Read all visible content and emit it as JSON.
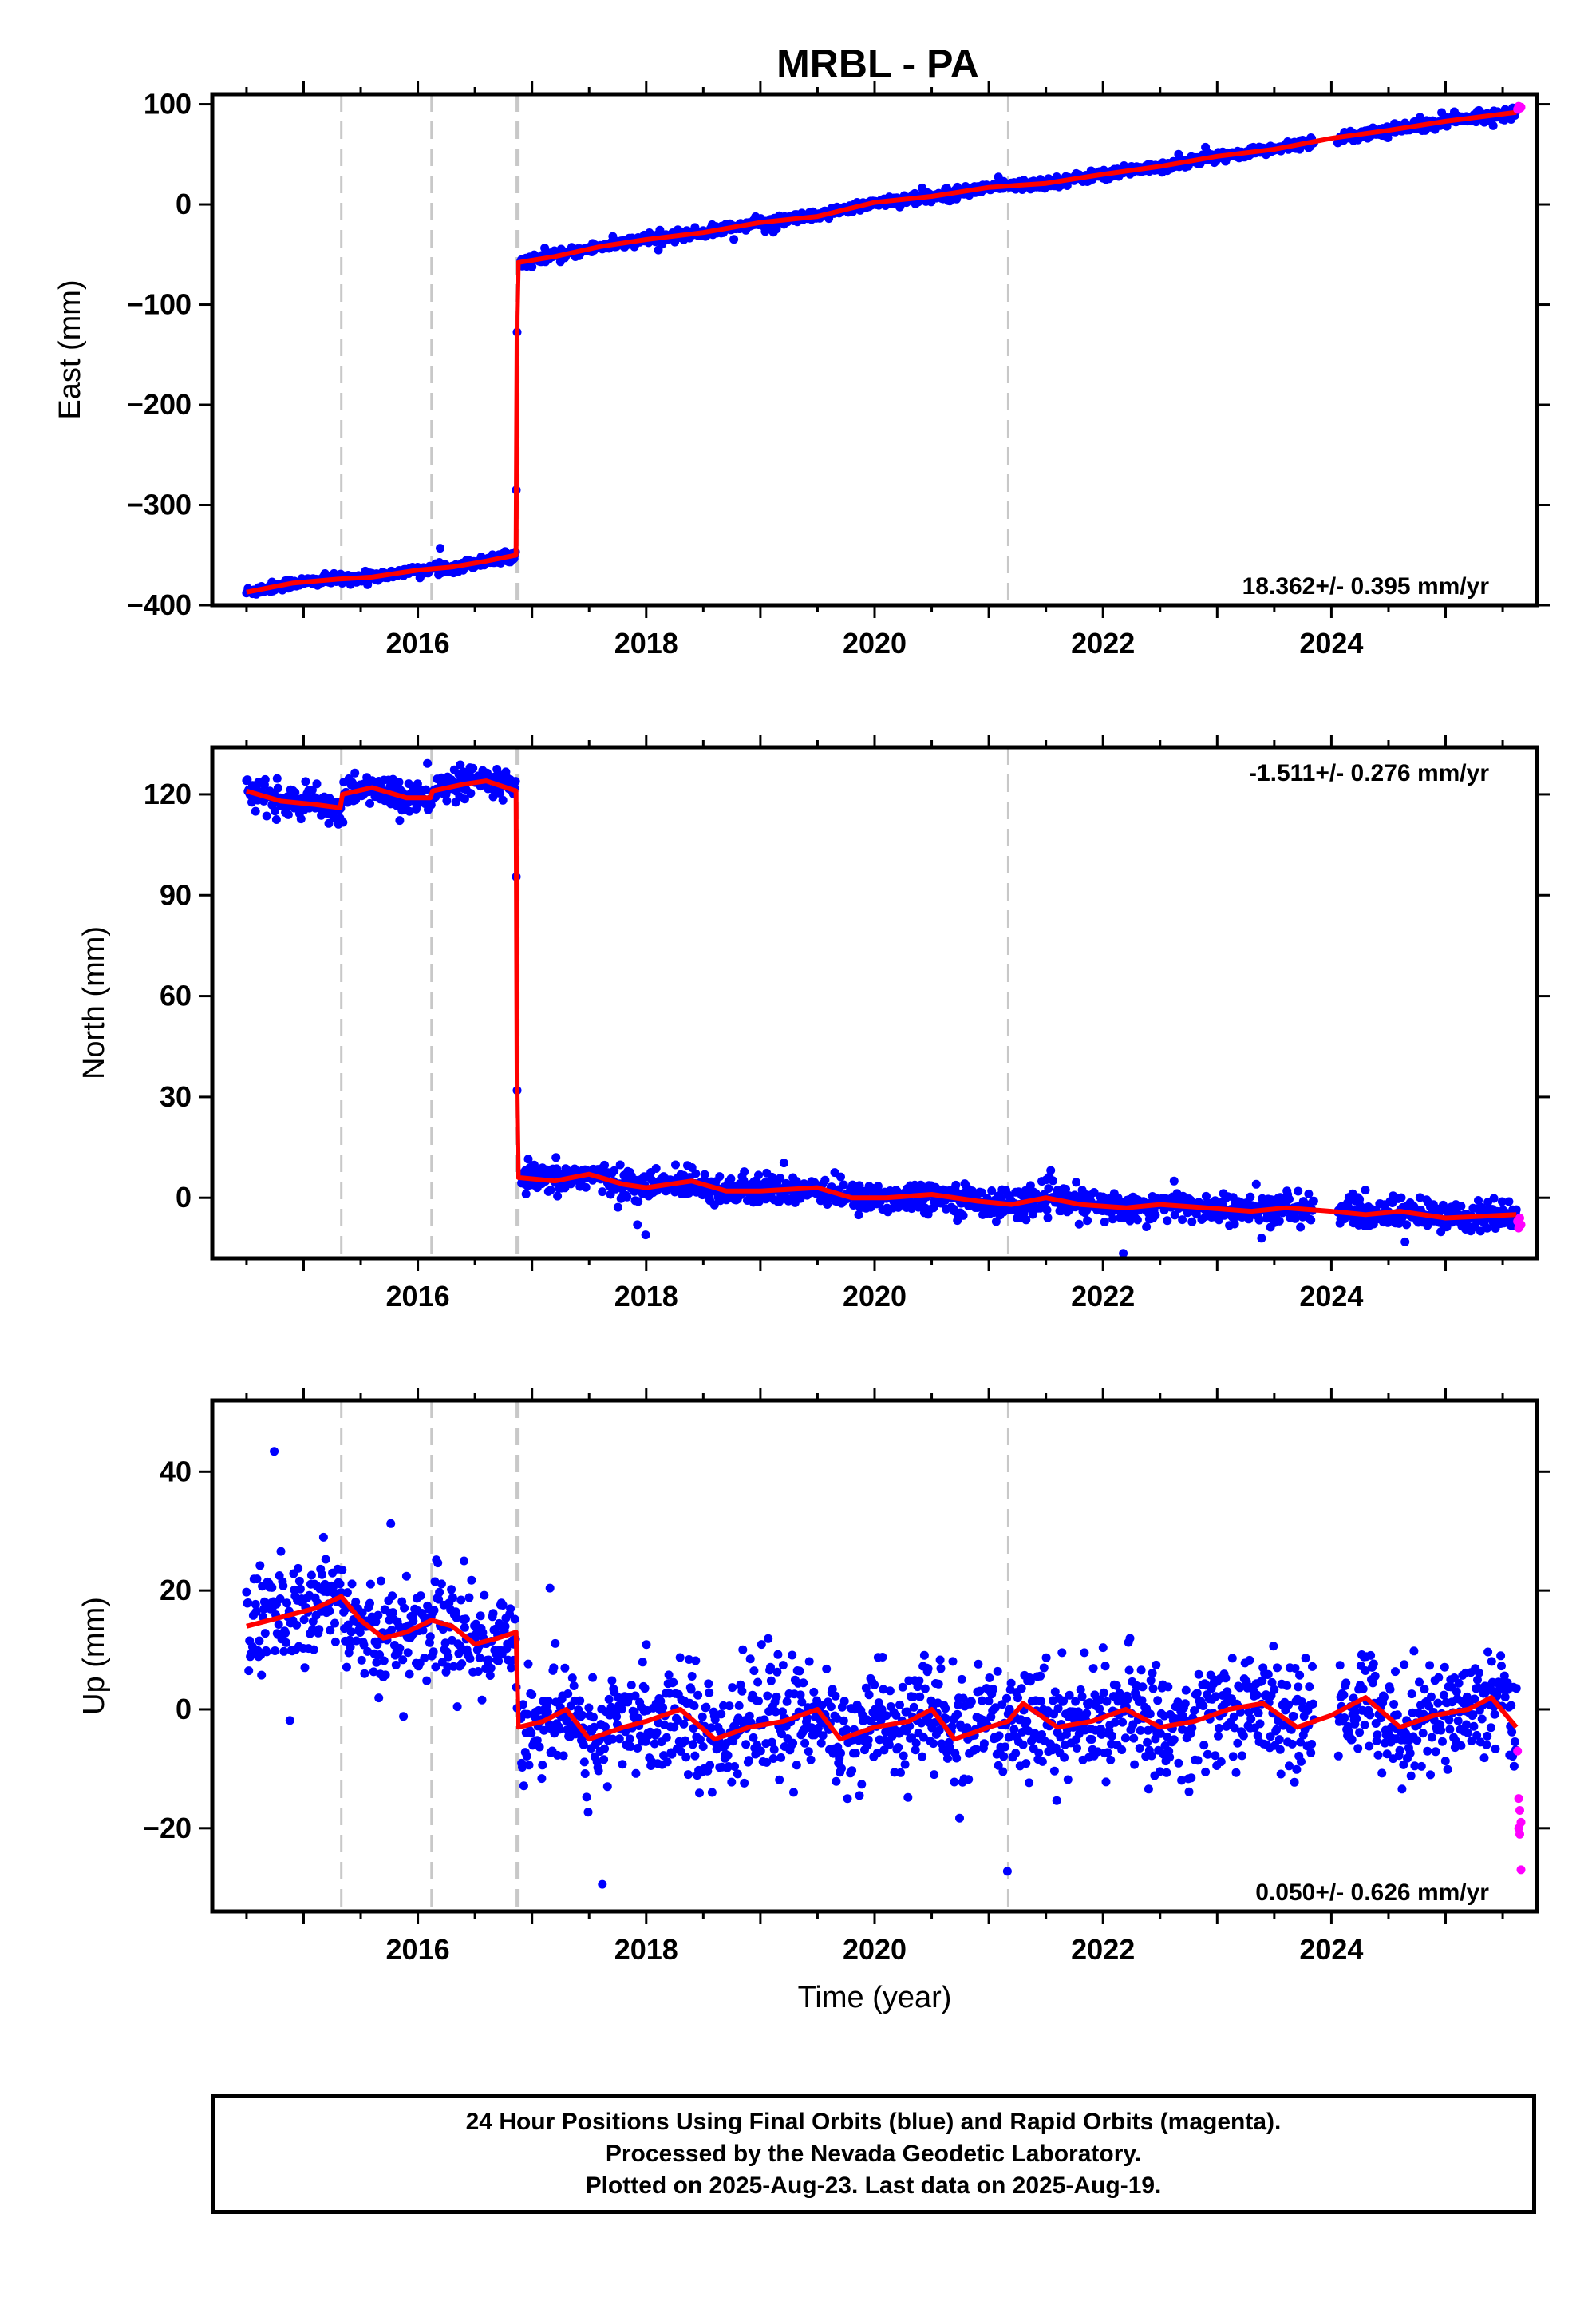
{
  "title": "MRBL - PA",
  "colors": {
    "final_orbits": "#0000ff",
    "rapid_orbits": "#ff00ff",
    "model": "#ff0000",
    "event_line": "#c8c8c8"
  },
  "footer": {
    "lines": [
      "24 Hour Positions Using Final Orbits (blue) and Rapid Orbits (magenta).",
      "Processed by the Nevada Geodetic Laboratory.",
      "Plotted on 2025-Aug-23. Last data on 2025-Aug-19."
    ]
  },
  "chart_data": [
    {
      "type": "scatter",
      "ylabel": "East (mm)",
      "xlabel": "",
      "xlim": [
        2014.2,
        2025.8
      ],
      "ylim": [
        -400,
        110
      ],
      "yticks": [
        -400,
        -300,
        -200,
        -100,
        0,
        100
      ],
      "xticks": [
        2016,
        2018,
        2020,
        2022,
        2024
      ],
      "rate_label": "18.362+/- 0.395 mm/yr",
      "rate_position": "bottom-right",
      "event_lines": [
        2015.33,
        2016.12,
        2016.87,
        2021.17
      ],
      "scatter_sd": 2.5,
      "series": [
        {
          "name": "final",
          "color": "#0000ff",
          "x_range": [
            2014.5,
            2025.62
          ],
          "model": [
            [
              2014.5,
              -387
            ],
            [
              2014.9,
              -378
            ],
            [
              2015.3,
              -374
            ],
            [
              2015.6,
              -372
            ],
            [
              2016.0,
              -365
            ],
            [
              2016.3,
              -362
            ],
            [
              2016.6,
              -356
            ],
            [
              2016.86,
              -350
            ],
            [
              2016.87,
              -112
            ],
            [
              2016.88,
              -58
            ],
            [
              2017.2,
              -52
            ],
            [
              2017.6,
              -42
            ],
            [
              2018.0,
              -35
            ],
            [
              2018.5,
              -28
            ],
            [
              2019.0,
              -18
            ],
            [
              2019.5,
              -12
            ],
            [
              2020.0,
              2
            ],
            [
              2020.5,
              8
            ],
            [
              2021.0,
              17
            ],
            [
              2021.5,
              21
            ],
            [
              2022.0,
              30
            ],
            [
              2022.5,
              38
            ],
            [
              2023.0,
              48
            ],
            [
              2023.5,
              55
            ],
            [
              2024.0,
              66
            ],
            [
              2024.5,
              74
            ],
            [
              2025.0,
              83
            ],
            [
              2025.62,
              92
            ]
          ]
        },
        {
          "name": "rapid",
          "color": "#ff00ff",
          "points": [
            [
              2025.63,
              95
            ],
            [
              2025.64,
              98
            ],
            [
              2025.65,
              96
            ],
            [
              2025.66,
              97
            ]
          ]
        }
      ]
    },
    {
      "type": "scatter",
      "ylabel": "North (mm)",
      "xlabel": "",
      "xlim": [
        2014.2,
        2025.8
      ],
      "ylim": [
        -18,
        134
      ],
      "yticks": [
        0,
        30,
        60,
        90,
        120
      ],
      "xticks": [
        2016,
        2018,
        2020,
        2022,
        2024
      ],
      "rate_label": "-1.511+/- 0.276 mm/yr",
      "rate_position": "top-right",
      "event_lines": [
        2015.33,
        2016.12,
        2016.87,
        2021.17
      ],
      "scatter_sd": 2.2,
      "series": [
        {
          "name": "final",
          "color": "#0000ff",
          "x_range": [
            2014.5,
            2025.62
          ],
          "model": [
            [
              2014.5,
              121
            ],
            [
              2014.8,
              118
            ],
            [
              2015.1,
              117
            ],
            [
              2015.32,
              116
            ],
            [
              2015.34,
              120
            ],
            [
              2015.6,
              122
            ],
            [
              2015.9,
              119
            ],
            [
              2016.11,
              119
            ],
            [
              2016.13,
              121
            ],
            [
              2016.4,
              123
            ],
            [
              2016.6,
              124
            ],
            [
              2016.86,
              121
            ],
            [
              2016.87,
              30
            ],
            [
              2016.88,
              6
            ],
            [
              2017.2,
              5
            ],
            [
              2017.5,
              7
            ],
            [
              2017.8,
              4
            ],
            [
              2018.0,
              3
            ],
            [
              2018.4,
              5
            ],
            [
              2018.7,
              2
            ],
            [
              2019.0,
              2
            ],
            [
              2019.5,
              3
            ],
            [
              2019.8,
              0
            ],
            [
              2020.1,
              0
            ],
            [
              2020.5,
              1
            ],
            [
              2020.9,
              -1
            ],
            [
              2021.2,
              -2
            ],
            [
              2021.5,
              0
            ],
            [
              2021.8,
              -2
            ],
            [
              2022.2,
              -3
            ],
            [
              2022.5,
              -2
            ],
            [
              2022.9,
              -3
            ],
            [
              2023.3,
              -4
            ],
            [
              2023.6,
              -3
            ],
            [
              2024.0,
              -4
            ],
            [
              2024.3,
              -5
            ],
            [
              2024.6,
              -4
            ],
            [
              2025.0,
              -6
            ],
            [
              2025.62,
              -5
            ]
          ]
        },
        {
          "name": "rapid",
          "color": "#ff00ff",
          "points": [
            [
              2025.63,
              -7
            ],
            [
              2025.64,
              -9
            ],
            [
              2025.65,
              -6
            ],
            [
              2025.66,
              -8
            ]
          ]
        }
      ]
    },
    {
      "type": "scatter",
      "ylabel": "Up (mm)",
      "xlabel": "Time (year)",
      "xlim": [
        2014.2,
        2025.8
      ],
      "ylim": [
        -34,
        52
      ],
      "yticks": [
        -20,
        0,
        20,
        40
      ],
      "xticks": [
        2016,
        2018,
        2020,
        2022,
        2024
      ],
      "rate_label": "0.050+/- 0.626 mm/yr",
      "rate_position": "bottom-right",
      "event_lines": [
        2015.33,
        2016.12,
        2016.87,
        2021.17
      ],
      "scatter_sd": 4.5,
      "series": [
        {
          "name": "final",
          "color": "#0000ff",
          "x_range": [
            2014.5,
            2025.62
          ],
          "model": [
            [
              2014.5,
              14
            ],
            [
              2014.7,
              15
            ],
            [
              2014.9,
              16
            ],
            [
              2015.1,
              17
            ],
            [
              2015.33,
              19
            ],
            [
              2015.5,
              15
            ],
            [
              2015.7,
              12
            ],
            [
              2015.9,
              13
            ],
            [
              2016.12,
              15
            ],
            [
              2016.3,
              14
            ],
            [
              2016.5,
              11
            ],
            [
              2016.7,
              12
            ],
            [
              2016.86,
              13
            ],
            [
              2016.88,
              -3
            ],
            [
              2017.1,
              -2
            ],
            [
              2017.3,
              0
            ],
            [
              2017.5,
              -5
            ],
            [
              2017.8,
              -3
            ],
            [
              2018.0,
              -2
            ],
            [
              2018.3,
              0
            ],
            [
              2018.6,
              -5
            ],
            [
              2018.9,
              -3
            ],
            [
              2019.2,
              -2
            ],
            [
              2019.5,
              0
            ],
            [
              2019.7,
              -5
            ],
            [
              2020.0,
              -3
            ],
            [
              2020.3,
              -2
            ],
            [
              2020.5,
              0
            ],
            [
              2020.7,
              -5
            ],
            [
              2021.0,
              -3
            ],
            [
              2021.17,
              -2
            ],
            [
              2021.3,
              1
            ],
            [
              2021.6,
              -3
            ],
            [
              2021.9,
              -2
            ],
            [
              2022.2,
              0
            ],
            [
              2022.5,
              -3
            ],
            [
              2022.8,
              -2
            ],
            [
              2023.1,
              0
            ],
            [
              2023.4,
              1
            ],
            [
              2023.7,
              -3
            ],
            [
              2024.0,
              -1
            ],
            [
              2024.3,
              2
            ],
            [
              2024.6,
              -3
            ],
            [
              2024.9,
              -1
            ],
            [
              2025.2,
              0
            ],
            [
              2025.4,
              2
            ],
            [
              2025.62,
              -3
            ]
          ]
        },
        {
          "name": "rapid",
          "color": "#ff00ff",
          "points": [
            [
              2025.63,
              -7
            ],
            [
              2025.64,
              -15
            ],
            [
              2025.65,
              -17
            ],
            [
              2025.66,
              -19
            ],
            [
              2025.64,
              -20
            ],
            [
              2025.65,
              -21
            ],
            [
              2025.66,
              -27
            ]
          ]
        }
      ]
    }
  ]
}
